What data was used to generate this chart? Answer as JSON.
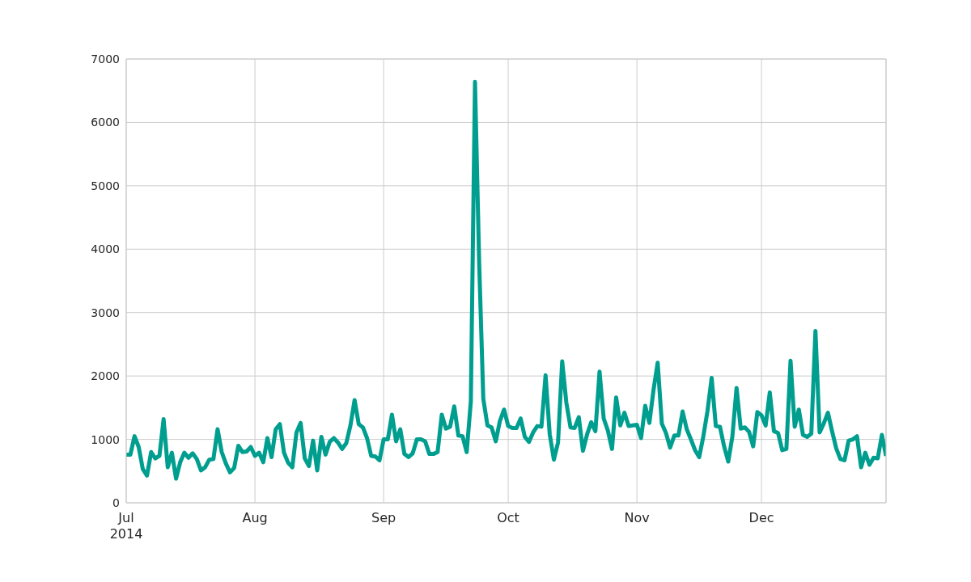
{
  "chart_data": {
    "type": "line",
    "x": [
      "2014-07-01",
      "2014-07-02",
      "2014-07-03",
      "2014-07-04",
      "2014-07-05",
      "2014-07-06",
      "2014-07-07",
      "2014-07-08",
      "2014-07-09",
      "2014-07-10",
      "2014-07-11",
      "2014-07-12",
      "2014-07-13",
      "2014-07-14",
      "2014-07-15",
      "2014-07-16",
      "2014-07-17",
      "2014-07-18",
      "2014-07-19",
      "2014-07-20",
      "2014-07-21",
      "2014-07-22",
      "2014-07-23",
      "2014-07-24",
      "2014-07-25",
      "2014-07-26",
      "2014-07-27",
      "2014-07-28",
      "2014-07-29",
      "2014-07-30",
      "2014-07-31",
      "2014-08-01",
      "2014-08-02",
      "2014-08-03",
      "2014-08-04",
      "2014-08-05",
      "2014-08-06",
      "2014-08-07",
      "2014-08-08",
      "2014-08-09",
      "2014-08-10",
      "2014-08-11",
      "2014-08-12",
      "2014-08-13",
      "2014-08-14",
      "2014-08-15",
      "2014-08-16",
      "2014-08-17",
      "2014-08-18",
      "2014-08-19",
      "2014-08-20",
      "2014-08-21",
      "2014-08-22",
      "2014-08-23",
      "2014-08-24",
      "2014-08-25",
      "2014-08-26",
      "2014-08-27",
      "2014-08-28",
      "2014-08-29",
      "2014-08-30",
      "2014-08-31",
      "2014-09-01",
      "2014-09-02",
      "2014-09-03",
      "2014-09-04",
      "2014-09-05",
      "2014-09-06",
      "2014-09-07",
      "2014-09-08",
      "2014-09-09",
      "2014-09-10",
      "2014-09-11",
      "2014-09-12",
      "2014-09-13",
      "2014-09-14",
      "2014-09-15",
      "2014-09-16",
      "2014-09-17",
      "2014-09-18",
      "2014-09-19",
      "2014-09-20",
      "2014-09-21",
      "2014-09-22",
      "2014-09-23",
      "2014-09-24",
      "2014-09-25",
      "2014-09-26",
      "2014-09-27",
      "2014-09-28",
      "2014-09-29",
      "2014-09-30",
      "2014-10-01",
      "2014-10-02",
      "2014-10-03",
      "2014-10-04",
      "2014-10-05",
      "2014-10-06",
      "2014-10-07",
      "2014-10-08",
      "2014-10-09",
      "2014-10-10",
      "2014-10-11",
      "2014-10-12",
      "2014-10-13",
      "2014-10-14",
      "2014-10-15",
      "2014-10-16",
      "2014-10-17",
      "2014-10-18",
      "2014-10-19",
      "2014-10-20",
      "2014-10-21",
      "2014-10-22",
      "2014-10-23",
      "2014-10-24",
      "2014-10-25",
      "2014-10-26",
      "2014-10-27",
      "2014-10-28",
      "2014-10-29",
      "2014-10-30",
      "2014-10-31",
      "2014-11-01",
      "2014-11-02",
      "2014-11-03",
      "2014-11-04",
      "2014-11-05",
      "2014-11-06",
      "2014-11-07",
      "2014-11-08",
      "2014-11-09",
      "2014-11-10",
      "2014-11-11",
      "2014-11-12",
      "2014-11-13",
      "2014-11-14",
      "2014-11-15",
      "2014-11-16",
      "2014-11-17",
      "2014-11-18",
      "2014-11-19",
      "2014-11-20",
      "2014-11-21",
      "2014-11-22",
      "2014-11-23",
      "2014-11-24",
      "2014-11-25",
      "2014-11-26",
      "2014-11-27",
      "2014-11-28",
      "2014-11-29",
      "2014-11-30",
      "2014-12-01",
      "2014-12-02",
      "2014-12-03",
      "2014-12-04",
      "2014-12-05",
      "2014-12-06",
      "2014-12-07",
      "2014-12-08",
      "2014-12-09",
      "2014-12-10",
      "2014-12-11",
      "2014-12-12",
      "2014-12-13",
      "2014-12-14",
      "2014-12-15",
      "2014-12-16",
      "2014-12-17",
      "2014-12-18",
      "2014-12-19",
      "2014-12-20",
      "2014-12-21",
      "2014-12-22",
      "2014-12-23",
      "2014-12-24",
      "2014-12-25",
      "2014-12-26",
      "2014-12-27",
      "2014-12-28",
      "2014-12-29",
      "2014-12-30",
      "2014-12-31"
    ],
    "series": [
      {
        "color": "#009e8f",
        "values": [
          760,
          760,
          1050,
          880,
          530,
          430,
          800,
          700,
          740,
          1320,
          560,
          790,
          380,
          640,
          790,
          710,
          780,
          690,
          510,
          560,
          680,
          690,
          1160,
          800,
          620,
          480,
          550,
          900,
          800,
          810,
          880,
          740,
          790,
          640,
          1020,
          720,
          1160,
          1240,
          790,
          630,
          560,
          1110,
          1260,
          700,
          580,
          980,
          510,
          1040,
          760,
          960,
          1020,
          950,
          850,
          940,
          1220,
          1620,
          1240,
          1190,
          1020,
          740,
          730,
          670,
          1000,
          1000,
          1390,
          970,
          1160,
          770,
          720,
          780,
          1000,
          1000,
          970,
          770,
          770,
          800,
          1390,
          1170,
          1200,
          1520,
          1060,
          1050,
          800,
          1600,
          6640,
          3800,
          1640,
          1220,
          1190,
          970,
          1290,
          1470,
          1210,
          1180,
          1180,
          1330,
          1040,
          960,
          1110,
          1210,
          1200,
          2010,
          1080,
          680,
          950,
          2230,
          1580,
          1190,
          1180,
          1350,
          820,
          1080,
          1270,
          1130,
          2070,
          1330,
          1140,
          850,
          1660,
          1220,
          1420,
          1210,
          1220,
          1230,
          1020,
          1530,
          1260,
          1780,
          2210,
          1250,
          1100,
          870,
          1060,
          1060,
          1440,
          1160,
          1000,
          830,
          720,
          1050,
          1450,
          1970,
          1210,
          1200,
          890,
          650,
          1050,
          1810,
          1170,
          1190,
          1120,
          890,
          1430,
          1380,
          1220,
          1740,
          1130,
          1100,
          830,
          850,
          2240,
          1200,
          1470,
          1070,
          1040,
          1090,
          2710,
          1110,
          1250,
          1420,
          1130,
          860,
          690,
          670,
          980,
          1000,
          1050,
          560,
          790,
          600,
          710,
          700,
          1070,
          740
        ]
      }
    ],
    "xlim": [
      "2014-07-01",
      "2014-12-31"
    ],
    "xticks": [
      {
        "value": "2014-07-01",
        "label": "Jul\n2014"
      },
      {
        "value": "2014-08-01",
        "label": "Aug"
      },
      {
        "value": "2014-09-01",
        "label": "Sep"
      },
      {
        "value": "2014-10-01",
        "label": "Oct"
      },
      {
        "value": "2014-11-01",
        "label": "Nov"
      },
      {
        "value": "2014-12-01",
        "label": "Dec"
      }
    ],
    "ylim": [
      0,
      7000
    ],
    "yticks": [
      0,
      1000,
      2000,
      3000,
      4000,
      5000,
      6000,
      7000
    ],
    "grid": true,
    "line_style": "solid"
  }
}
